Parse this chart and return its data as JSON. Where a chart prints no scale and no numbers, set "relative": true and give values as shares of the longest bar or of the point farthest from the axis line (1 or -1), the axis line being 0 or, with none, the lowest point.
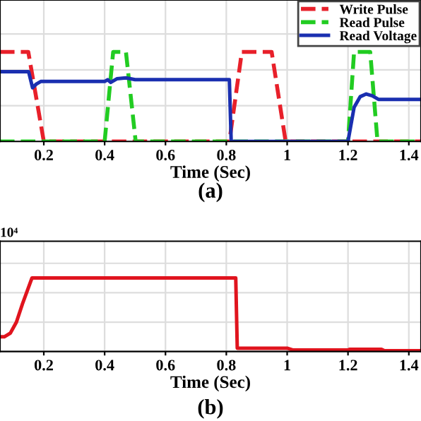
{
  "chart_data": [
    {
      "type": "line",
      "relative": true,
      "xlabel": "Time (Sec)",
      "annotations": [
        "(a)"
      ],
      "xlim": [
        0.056,
        1.44
      ],
      "xticks": [
        0.2,
        0.4,
        0.6,
        0.8,
        1,
        1.2,
        1.4
      ],
      "grid": true,
      "legend": "top right",
      "series": [
        {
          "name": "Write Pulse",
          "color": "#e8202a",
          "line_style": "dashed",
          "x": [
            0.056,
            0.149,
            0.2,
            0.81,
            0.851,
            0.949,
            0.995,
            1.44
          ],
          "values": [
            1,
            1,
            0,
            0,
            1,
            1,
            0,
            0
          ]
        },
        {
          "name": "Read Pulse",
          "color": "#22cc22",
          "line_style": "dashed",
          "x": [
            0.056,
            0.4,
            0.428,
            0.47,
            0.502,
            1.2,
            1.22,
            1.273,
            1.297,
            1.44
          ],
          "values": [
            0,
            0,
            1,
            1,
            0,
            0,
            1,
            1,
            0,
            0
          ]
        },
        {
          "name": "Read Voltage",
          "color": "#1a2fb0",
          "line_style": "solid",
          "x": [
            0.056,
            0.15,
            0.163,
            0.175,
            0.19,
            0.4,
            0.41,
            0.42,
            0.44,
            0.47,
            0.5,
            0.81,
            0.816,
            1.2,
            1.22,
            1.24,
            1.26,
            1.28,
            1.3,
            1.44
          ],
          "values": [
            0.78,
            0.78,
            0.6,
            0.64,
            0.67,
            0.67,
            0.69,
            0.66,
            0.7,
            0.71,
            0.69,
            0.69,
            0,
            0,
            0.38,
            0.5,
            0.53,
            0.51,
            0.47,
            0.47
          ]
        }
      ]
    },
    {
      "type": "line",
      "relative": true,
      "xlabel": "Time (Sec)",
      "annotations": [
        "10⁴",
        "(b)"
      ],
      "xlim": [
        0.056,
        1.44
      ],
      "xticks": [
        0.2,
        0.4,
        0.6,
        0.8,
        1,
        1.2,
        1.4
      ],
      "grid": true,
      "series": [
        {
          "color": "#e0141e",
          "line_style": "solid",
          "x": [
            0.056,
            0.07,
            0.09,
            0.11,
            0.13,
            0.161,
            0.831,
            0.836,
            1.0,
            1.02,
            1.2,
            1.205,
            1.31,
            1.32,
            1.44
          ],
          "values": [
            0.2,
            0.2,
            0.25,
            0.4,
            0.65,
            1,
            1,
            0.045,
            0.045,
            0.02,
            0.02,
            0.03,
            0.03,
            0.01,
            0.01
          ]
        }
      ]
    }
  ]
}
